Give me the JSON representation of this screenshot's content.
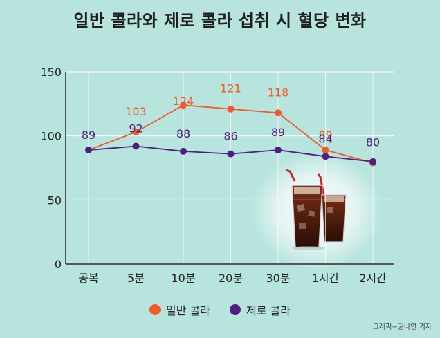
{
  "chart_data": {
    "type": "line",
    "title": "일반 콜라와 제로 콜라 섭취 시 혈당 변화",
    "categories": [
      "공복",
      "5분",
      "10분",
      "20분",
      "30분",
      "1시간",
      "2시간"
    ],
    "yticks": [
      0,
      50,
      100,
      150
    ],
    "ylim": [
      0,
      150
    ],
    "xlabel": "",
    "ylabel": "",
    "series": [
      {
        "name": "일반 콜라",
        "color": "#f05a28",
        "values": [
          89,
          103,
          124,
          121,
          118,
          89,
          79
        ],
        "labels": [
          "",
          "103",
          "124",
          "121",
          "118",
          "89",
          ""
        ]
      },
      {
        "name": "제로 콜라",
        "color": "#4e1f7d",
        "values": [
          89,
          92,
          88,
          86,
          89,
          84,
          80
        ],
        "labels": [
          "89",
          "92",
          "88",
          "86",
          "89",
          "84",
          "80"
        ]
      }
    ]
  },
  "credit": "그래픽=권나연 기자"
}
